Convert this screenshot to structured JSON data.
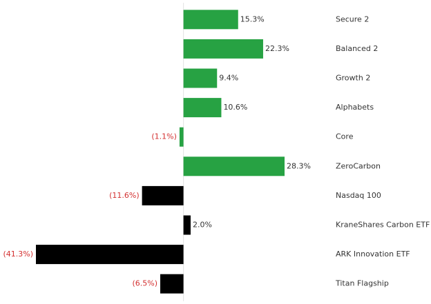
{
  "chart_data": {
    "type": "bar",
    "orientation": "horizontal",
    "categories": [
      "Secure 2",
      "Balanced 2",
      "Growth 2",
      "Alphabets",
      "Core",
      "ZeroCarbon",
      "Nasdaq 100",
      "KraneShares Carbon ETF",
      "ARK Innovation ETF",
      "Titan Flagship"
    ],
    "values": [
      15.3,
      22.3,
      9.4,
      10.6,
      -1.1,
      28.3,
      -11.6,
      2.0,
      -41.3,
      -6.5
    ],
    "value_labels": [
      "15.3%",
      "22.3%",
      "9.4%",
      "10.6%",
      "(1.1%)",
      "28.3%",
      "(11.6%)",
      "2.0%",
      "(41.3%)",
      "(6.5%)"
    ],
    "colors": [
      "#27a243",
      "#27a243",
      "#27a243",
      "#27a243",
      "#27a243",
      "#27a243",
      "#000000",
      "#000000",
      "#000000",
      "#000000"
    ]
  }
}
